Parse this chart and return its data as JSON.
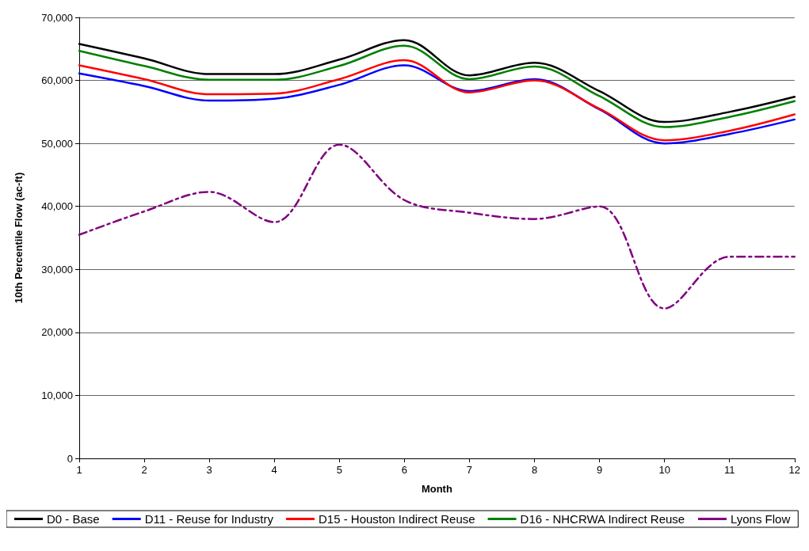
{
  "chart_data": {
    "type": "line",
    "xlabel": "Month",
    "ylabel": "10th Percentile Flow (ac-ft)",
    "x": [
      1,
      2,
      3,
      4,
      5,
      6,
      7,
      8,
      9,
      10,
      11,
      12
    ],
    "xlim": [
      1,
      12
    ],
    "xticks": [
      1,
      2,
      3,
      4,
      5,
      6,
      7,
      8,
      9,
      10,
      11,
      12
    ],
    "ylim": [
      0,
      70000
    ],
    "yticks": [
      0,
      {
        "value": 10000,
        "label": "10,000"
      },
      {
        "value": 20000,
        "label": "20,000"
      },
      {
        "value": 30000,
        "label": "30,000"
      },
      {
        "value": 40000,
        "label": "40,000"
      },
      {
        "value": 50000,
        "label": "50,000"
      },
      {
        "value": 60000,
        "label": "60,000"
      },
      {
        "value": 70000,
        "label": "70,000"
      }
    ],
    "grid": "y",
    "legend": "bottom",
    "marker": "none",
    "line_style": "solid",
    "series": [
      {
        "name": "D0 - Base",
        "color": "#000000",
        "values": [
          65800,
          63500,
          61000,
          61000,
          63300,
          66400,
          60800,
          62800,
          58300,
          53400,
          55000,
          57400
        ]
      },
      {
        "name": "D11 - Reuse for Industry",
        "color": "#0000ff",
        "values": [
          61100,
          59100,
          56800,
          57100,
          59300,
          62400,
          58300,
          60200,
          55400,
          50000,
          51500,
          53800
        ]
      },
      {
        "name": "D15 - Houston Indirect Reuse",
        "color": "#ff0000",
        "values": [
          62400,
          60200,
          57800,
          57900,
          60200,
          63200,
          58100,
          60000,
          55500,
          50500,
          52000,
          54600
        ]
      },
      {
        "name": "D16 - NHCRWA Indirect Reuse",
        "color": "#008000",
        "values": [
          64700,
          62300,
          60100,
          60100,
          62300,
          65500,
          60200,
          62200,
          57500,
          52600,
          54200,
          56700
        ]
      },
      {
        "name": "Lyons Flow",
        "color": "#800080",
        "line_style": "dashed",
        "values": [
          35500,
          39200,
          42300,
          37500,
          49800,
          41000,
          39000,
          38000,
          40000,
          23800,
          32000,
          32000
        ]
      }
    ]
  }
}
